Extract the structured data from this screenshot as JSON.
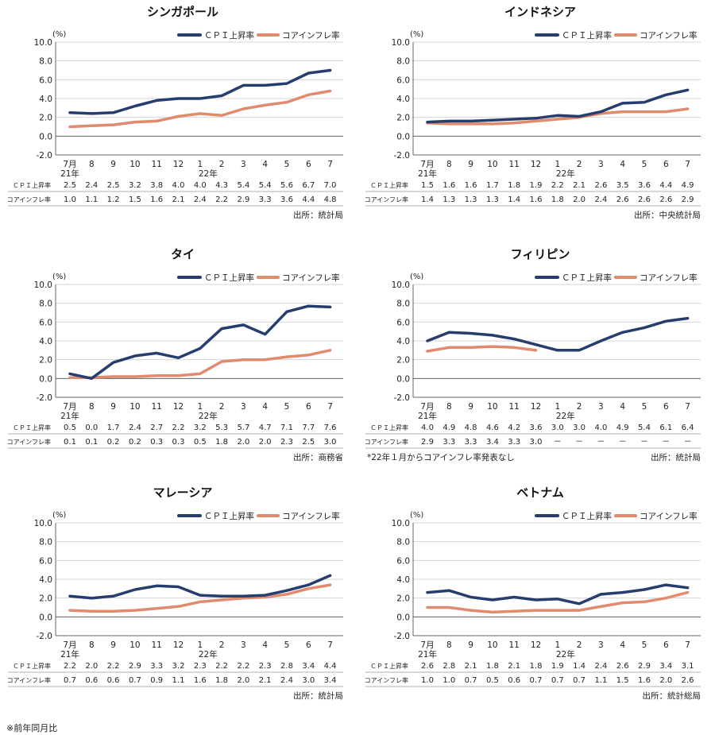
{
  "colors": {
    "cpi": "#263d6e",
    "core": "#e08a6e",
    "grid": "#d6d6d6",
    "axis": "#666666"
  },
  "legend": {
    "cpi": "ＣＰＩ上昇率",
    "core": "コアインフレ率"
  },
  "unit_label": "(%)",
  "y_ticks": [
    "10.0",
    "8.0",
    "6.0",
    "4.0",
    "2.0",
    "0.0",
    "-2.0"
  ],
  "x_labels": [
    "7月",
    "8",
    "9",
    "10",
    "11",
    "12",
    "1",
    "2",
    "3",
    "4",
    "5",
    "6",
    "7"
  ],
  "x_sub": {
    "first": "21年",
    "seventh": "22年"
  },
  "row_labels": {
    "cpi": "ＣＰＩ上昇率",
    "core": "コアインフレ率"
  },
  "footnote": "※前年同月比",
  "chart_data": [
    {
      "type": "line",
      "title": "シンガポール",
      "ylim": [
        -2,
        10
      ],
      "source": "出所：統計局",
      "note": "",
      "categories": [
        "7月 21年",
        "8",
        "9",
        "10",
        "11",
        "12",
        "1 22年",
        "2",
        "3",
        "4",
        "5",
        "6",
        "7"
      ],
      "series": [
        {
          "name": "ＣＰＩ上昇率",
          "values": [
            2.5,
            2.4,
            2.5,
            3.2,
            3.8,
            4.0,
            4.0,
            4.3,
            5.4,
            5.4,
            5.6,
            6.7,
            7.0
          ],
          "labels": [
            "2.5",
            "2.4",
            "2.5",
            "3.2",
            "3.8",
            "4.0",
            "4.0",
            "4.3",
            "5.4",
            "5.4",
            "5.6",
            "6.7",
            "7.0"
          ]
        },
        {
          "name": "コアインフレ率",
          "values": [
            1.0,
            1.1,
            1.2,
            1.5,
            1.6,
            2.1,
            2.4,
            2.2,
            2.9,
            3.3,
            3.6,
            4.4,
            4.8
          ],
          "labels": [
            "1.0",
            "1.1",
            "1.2",
            "1.5",
            "1.6",
            "2.1",
            "2.4",
            "2.2",
            "2.9",
            "3.3",
            "3.6",
            "4.4",
            "4.8"
          ]
        }
      ]
    },
    {
      "type": "line",
      "title": "インドネシア",
      "ylim": [
        -2,
        10
      ],
      "source": "出所：中央統計局",
      "note": "",
      "categories": [
        "7月 21年",
        "8",
        "9",
        "10",
        "11",
        "12",
        "1 22年",
        "2",
        "3",
        "4",
        "5",
        "6",
        "7"
      ],
      "series": [
        {
          "name": "ＣＰＩ上昇率",
          "values": [
            1.5,
            1.6,
            1.6,
            1.7,
            1.8,
            1.9,
            2.2,
            2.1,
            2.6,
            3.5,
            3.6,
            4.4,
            4.9
          ],
          "labels": [
            "1.5",
            "1.6",
            "1.6",
            "1.7",
            "1.8",
            "1.9",
            "2.2",
            "2.1",
            "2.6",
            "3.5",
            "3.6",
            "4.4",
            "4.9"
          ]
        },
        {
          "name": "コアインフレ率",
          "values": [
            1.4,
            1.3,
            1.3,
            1.3,
            1.4,
            1.6,
            1.8,
            2.0,
            2.4,
            2.6,
            2.6,
            2.6,
            2.9
          ],
          "labels": [
            "1.4",
            "1.3",
            "1.3",
            "1.3",
            "1.4",
            "1.6",
            "1.8",
            "2.0",
            "2.4",
            "2.6",
            "2.6",
            "2.6",
            "2.9"
          ]
        }
      ]
    },
    {
      "type": "line",
      "title": "タイ",
      "ylim": [
        -2,
        10
      ],
      "source": "出所：商務省",
      "note": "",
      "categories": [
        "7月 21年",
        "8",
        "9",
        "10",
        "11",
        "12",
        "1 22年",
        "2",
        "3",
        "4",
        "5",
        "6",
        "7"
      ],
      "series": [
        {
          "name": "ＣＰＩ上昇率",
          "values": [
            0.5,
            0.0,
            1.7,
            2.4,
            2.7,
            2.2,
            3.2,
            5.3,
            5.7,
            4.7,
            7.1,
            7.7,
            7.6
          ],
          "labels": [
            "0.5",
            "0.0",
            "1.7",
            "2.4",
            "2.7",
            "2.2",
            "3.2",
            "5.3",
            "5.7",
            "4.7",
            "7.1",
            "7.7",
            "7.6"
          ]
        },
        {
          "name": "コアインフレ率",
          "values": [
            0.1,
            0.1,
            0.2,
            0.2,
            0.3,
            0.3,
            0.5,
            1.8,
            2.0,
            2.0,
            2.3,
            2.5,
            3.0
          ],
          "labels": [
            "0.1",
            "0.1",
            "0.2",
            "0.2",
            "0.3",
            "0.3",
            "0.5",
            "1.8",
            "2.0",
            "2.0",
            "2.3",
            "2.5",
            "3.0"
          ]
        }
      ]
    },
    {
      "type": "line",
      "title": "フィリピン",
      "ylim": [
        -2,
        10
      ],
      "source": "出所：統計局",
      "note": "*22年１月からコアインフレ率発表なし",
      "categories": [
        "7月 21年",
        "8",
        "9",
        "10",
        "11",
        "12",
        "1 22年",
        "2",
        "3",
        "4",
        "5",
        "6",
        "7"
      ],
      "series": [
        {
          "name": "ＣＰＩ上昇率",
          "values": [
            4.0,
            4.9,
            4.8,
            4.6,
            4.2,
            3.6,
            3.0,
            3.0,
            4.0,
            4.9,
            5.4,
            6.1,
            6.4
          ],
          "labels": [
            "4.0",
            "4.9",
            "4.8",
            "4.6",
            "4.2",
            "3.6",
            "3.0",
            "3.0",
            "4.0",
            "4.9",
            "5.4",
            "6.1",
            "6.4"
          ]
        },
        {
          "name": "コアインフレ率",
          "values": [
            2.9,
            3.3,
            3.3,
            3.4,
            3.3,
            3.0,
            null,
            null,
            null,
            null,
            null,
            null,
            null
          ],
          "labels": [
            "2.9",
            "3.3",
            "3.3",
            "3.4",
            "3.3",
            "3.0",
            "－",
            "－",
            "－",
            "－",
            "－",
            "－",
            "－"
          ]
        }
      ]
    },
    {
      "type": "line",
      "title": "マレーシア",
      "ylim": [
        -2,
        10
      ],
      "source": "出所：統計局",
      "note": "",
      "categories": [
        "7月 21年",
        "8",
        "9",
        "10",
        "11",
        "12",
        "1 22年",
        "2",
        "3",
        "4",
        "5",
        "6",
        "7"
      ],
      "series": [
        {
          "name": "ＣＰＩ上昇率",
          "values": [
            2.2,
            2.0,
            2.2,
            2.9,
            3.3,
            3.2,
            2.3,
            2.2,
            2.2,
            2.3,
            2.8,
            3.4,
            4.4
          ],
          "labels": [
            "2.2",
            "2.0",
            "2.2",
            "2.9",
            "3.3",
            "3.2",
            "2.3",
            "2.2",
            "2.2",
            "2.3",
            "2.8",
            "3.4",
            "4.4"
          ]
        },
        {
          "name": "コアインフレ率",
          "values": [
            0.7,
            0.6,
            0.6,
            0.7,
            0.9,
            1.1,
            1.6,
            1.8,
            2.0,
            2.1,
            2.4,
            3.0,
            3.4
          ],
          "labels": [
            "0.7",
            "0.6",
            "0.6",
            "0.7",
            "0.9",
            "1.1",
            "1.6",
            "1.8",
            "2.0",
            "2.1",
            "2.4",
            "3.0",
            "3.4"
          ]
        }
      ]
    },
    {
      "type": "line",
      "title": "ベトナム",
      "ylim": [
        -2,
        10
      ],
      "source": "出所：統計総局",
      "note": "",
      "categories": [
        "7月 21年",
        "8",
        "9",
        "10",
        "11",
        "12",
        "1 22年",
        "2",
        "3",
        "4",
        "5",
        "6",
        "7"
      ],
      "series": [
        {
          "name": "ＣＰＩ上昇率",
          "values": [
            2.6,
            2.8,
            2.1,
            1.8,
            2.1,
            1.8,
            1.9,
            1.4,
            2.4,
            2.6,
            2.9,
            3.4,
            3.1
          ],
          "labels": [
            "2.6",
            "2.8",
            "2.1",
            "1.8",
            "2.1",
            "1.8",
            "1.9",
            "1.4",
            "2.4",
            "2.6",
            "2.9",
            "3.4",
            "3.1"
          ]
        },
        {
          "name": "コアインフレ率",
          "values": [
            1.0,
            1.0,
            0.7,
            0.5,
            0.6,
            0.7,
            0.7,
            0.7,
            1.1,
            1.5,
            1.6,
            2.0,
            2.6
          ],
          "labels": [
            "1.0",
            "1.0",
            "0.7",
            "0.5",
            "0.6",
            "0.7",
            "0.7",
            "0.7",
            "1.1",
            "1.5",
            "1.6",
            "2.0",
            "2.6"
          ]
        }
      ]
    }
  ]
}
